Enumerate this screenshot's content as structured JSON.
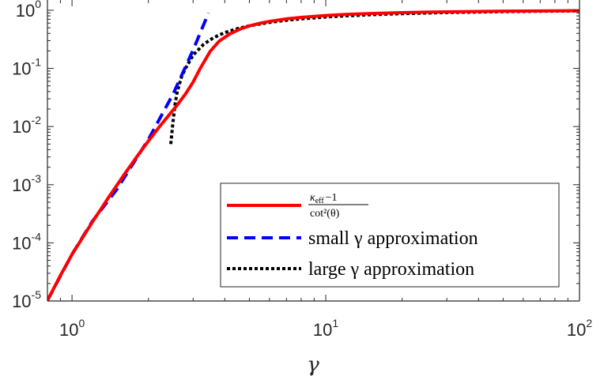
{
  "chart_data": {
    "type": "line",
    "title": "",
    "xlabel": "γ",
    "ylabel": "",
    "xscale": "log",
    "yscale": "log",
    "xlim": [
      0.8,
      100
    ],
    "ylim": [
      1e-05,
      1.5
    ],
    "xticks": [
      {
        "value": 1,
        "base": "10",
        "exp": "0"
      },
      {
        "value": 10,
        "base": "10",
        "exp": "1"
      },
      {
        "value": 100,
        "base": "10",
        "exp": "2"
      }
    ],
    "yticks": [
      {
        "value": 1,
        "base": "10",
        "exp": "0"
      },
      {
        "value": 0.1,
        "base": "10",
        "exp": "-1"
      },
      {
        "value": 0.01,
        "base": "10",
        "exp": "-2"
      },
      {
        "value": 0.001,
        "base": "10",
        "exp": "-3"
      },
      {
        "value": 0.0001,
        "base": "10",
        "exp": "-4"
      },
      {
        "value": 1e-05,
        "base": "10",
        "exp": "-5"
      }
    ],
    "grid": false,
    "legend_position": "bottom-right",
    "series": [
      {
        "name": "(κeff − 1) / cot²(θ)",
        "name_parts": {
          "num_kappa": "κ",
          "num_sub": "eff",
          "num_rest": "−1",
          "den": "cot²(θ)"
        },
        "color": "#ff0000",
        "style": "solid",
        "x": [
          0.8,
          0.9,
          1.0,
          1.2,
          1.4,
          1.6,
          1.8,
          2.0,
          2.2,
          2.4,
          2.6,
          2.8,
          3.0,
          3.2,
          3.5,
          3.8,
          4.2,
          4.6,
          5.0,
          5.5,
          6.0,
          7.0,
          8.0,
          10,
          12,
          15,
          20,
          25,
          30,
          40,
          50,
          60,
          70,
          80,
          90,
          100
        ],
        "y": [
          1.02e-05,
          2.75e-05,
          6.33e-05,
          0.000224,
          0.000624,
          0.00146,
          0.00302,
          0.00564,
          0.00967,
          0.0154,
          0.0236,
          0.0363,
          0.0581,
          0.0999,
          0.195,
          0.294,
          0.395,
          0.475,
          0.537,
          0.596,
          0.643,
          0.71,
          0.754,
          0.811,
          0.847,
          0.879,
          0.91,
          0.927,
          0.939,
          0.954,
          0.963,
          0.969,
          0.973,
          0.976,
          0.979,
          0.981
        ]
      },
      {
        "name": "small γ approximation",
        "color": "#0000ff",
        "style": "dashed",
        "x": [
          0.8,
          1.0,
          1.2,
          1.5,
          2.0,
          2.5,
          3.0,
          3.45
        ],
        "y": [
          1.02e-05,
          6.36e-05,
          0.000232,
          0.000826,
          0.00601,
          0.0359,
          0.206,
          0.9
        ]
      },
      {
        "name": "large γ approximation",
        "color": "#000000",
        "style": "dotted",
        "x": [
          2.45,
          2.5,
          2.55,
          2.6,
          2.7,
          2.8,
          3.0,
          3.3,
          3.6,
          4.0,
          4.5,
          5.0,
          6.0,
          7.0,
          8.0,
          10,
          12,
          15,
          20,
          30,
          50,
          70,
          100
        ],
        "y": [
          0.005,
          0.012,
          0.025,
          0.04,
          0.071,
          0.1,
          0.169,
          0.259,
          0.335,
          0.413,
          0.485,
          0.54,
          0.618,
          0.672,
          0.711,
          0.765,
          0.801,
          0.837,
          0.874,
          0.913,
          0.947,
          0.962,
          0.973
        ]
      }
    ]
  }
}
